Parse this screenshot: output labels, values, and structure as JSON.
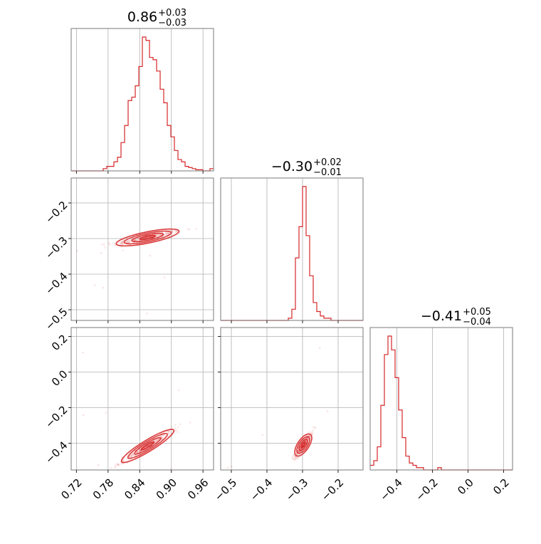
{
  "chart_data": {
    "type": "corner",
    "color": "#d62728",
    "parameters": [
      {
        "title_value": "0.86",
        "title_plus": "+0.03",
        "title_minus": "−0.03",
        "range": [
          0.71,
          0.98
        ],
        "ticks": [
          0.72,
          0.78,
          0.84,
          0.9,
          0.96
        ],
        "tick_labels": [
          "0.72",
          "0.78",
          "0.84",
          "0.90",
          "0.96"
        ],
        "histogram": {
          "edges_start": 0.71,
          "bin_width": 0.00675,
          "counts": [
            0,
            0,
            0,
            0,
            0,
            0,
            0,
            0,
            0,
            2,
            4,
            4,
            8,
            12,
            25,
            40,
            62,
            65,
            75,
            92,
            118,
            115,
            100,
            98,
            88,
            72,
            60,
            40,
            30,
            18,
            10,
            8,
            4,
            3,
            2,
            1,
            1,
            0,
            0,
            2
          ]
        }
      },
      {
        "title_value": "−0.30",
        "title_plus": "+0.02",
        "title_minus": "−0.01",
        "range": [
          -0.53,
          -0.13
        ],
        "ticks": [
          -0.5,
          -0.4,
          -0.3,
          -0.2
        ],
        "tick_labels": [
          "−0.5",
          "−0.4",
          "−0.3",
          "−0.2"
        ],
        "y_ticks": [
          -0.2,
          -0.3,
          -0.4,
          -0.5
        ],
        "y_tick_labels": [
          "−0.2",
          "−0.3",
          "−0.4",
          "−0.5"
        ],
        "histogram": {
          "edges_start": -0.53,
          "bin_width": 0.01,
          "counts": [
            0,
            0,
            0,
            0,
            0,
            0,
            0,
            0,
            0,
            0,
            0,
            0,
            0,
            0,
            0,
            0,
            0,
            0,
            0,
            1,
            5,
            28,
            42,
            60,
            38,
            20,
            8,
            4,
            2,
            1,
            1,
            0,
            0,
            0,
            0,
            0,
            0,
            0,
            0,
            0
          ]
        }
      },
      {
        "title_value": "−0.41",
        "title_plus": "+0.05",
        "title_minus": "−0.04",
        "range": [
          -0.55,
          0.25
        ],
        "ticks": [
          -0.4,
          -0.2,
          0.0,
          0.2
        ],
        "tick_labels": [
          "−0.4",
          "−0.2",
          "0.0",
          "0.2"
        ],
        "y_ticks": [
          0.2,
          0.0,
          -0.2,
          -0.4
        ],
        "y_tick_labels": [
          "0.2",
          "0.0",
          "−0.2",
          "−0.4"
        ],
        "histogram": {
          "edges_start": -0.55,
          "bin_width": 0.02,
          "counts": [
            2,
            4,
            10,
            28,
            50,
            58,
            52,
            40,
            26,
            14,
            6,
            3,
            2,
            1,
            1,
            0,
            0,
            0,
            0,
            1,
            0,
            0,
            0,
            0,
            0,
            0,
            0,
            0,
            0,
            0,
            0,
            0,
            0,
            0,
            0,
            0,
            0,
            0,
            0,
            0
          ]
        }
      }
    ],
    "joint": [
      {
        "x_param": 0,
        "y_param": 1,
        "center": [
          0.855,
          -0.297
        ],
        "principal_dir": [
          0.06,
          0.018
        ],
        "sigma_major": 1.0,
        "sigma_minor": 0.005,
        "contour_levels": [
          0.5,
          1.0,
          1.5,
          2.0
        ]
      },
      {
        "x_param": 0,
        "y_param": 2,
        "center": [
          0.855,
          -0.415
        ],
        "principal_dir": [
          0.05,
          0.09
        ],
        "sigma_major": 1.0,
        "sigma_minor": 0.012,
        "contour_levels": [
          0.5,
          1.0,
          1.5,
          2.0
        ]
      },
      {
        "x_param": 1,
        "y_param": 2,
        "center": [
          -0.298,
          -0.41
        ],
        "principal_dir": [
          0.02,
          0.06
        ],
        "sigma_major": 1.0,
        "sigma_minor": 0.008,
        "contour_levels": [
          0.5,
          1.0,
          1.5,
          2.0
        ]
      }
    ]
  }
}
